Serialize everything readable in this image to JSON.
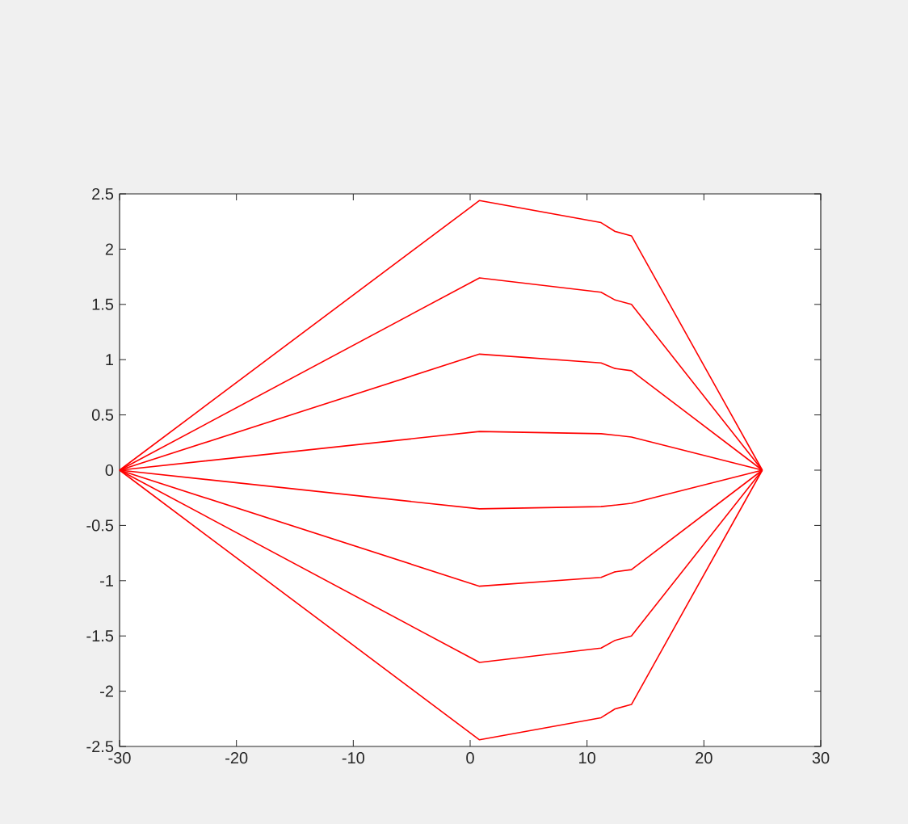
{
  "chart_data": {
    "type": "line",
    "series": [
      {
        "color": "#ff0000",
        "x": [
          -30,
          0.8,
          11.2,
          12.4,
          13.8,
          25
        ],
        "values": [
          0,
          2.44,
          2.24,
          2.16,
          2.12,
          0
        ]
      },
      {
        "color": "#ff0000",
        "x": [
          -30,
          0.8,
          11.2,
          12.4,
          13.8,
          25
        ],
        "values": [
          0,
          1.74,
          1.61,
          1.54,
          1.5,
          0
        ]
      },
      {
        "color": "#ff0000",
        "x": [
          -30,
          0.8,
          11.2,
          12.4,
          13.8,
          25
        ],
        "values": [
          0,
          1.05,
          0.97,
          0.92,
          0.9,
          0
        ]
      },
      {
        "color": "#ff0000",
        "x": [
          -30,
          0.8,
          11.2,
          13.8,
          25
        ],
        "values": [
          0,
          0.35,
          0.33,
          0.3,
          0
        ]
      },
      {
        "color": "#ff0000",
        "x": [
          -30,
          0.8,
          11.2,
          13.8,
          25
        ],
        "values": [
          0,
          -0.35,
          -0.33,
          -0.3,
          0
        ]
      },
      {
        "color": "#ff0000",
        "x": [
          -30,
          0.8,
          11.2,
          12.4,
          13.8,
          25
        ],
        "values": [
          0,
          -1.05,
          -0.97,
          -0.92,
          -0.9,
          0
        ]
      },
      {
        "color": "#ff0000",
        "x": [
          -30,
          0.8,
          11.2,
          12.4,
          13.8,
          25
        ],
        "values": [
          0,
          -1.74,
          -1.61,
          -1.54,
          -1.5,
          0
        ]
      },
      {
        "color": "#ff0000",
        "x": [
          -30,
          0.8,
          11.2,
          12.4,
          13.8,
          25
        ],
        "values": [
          0,
          -2.44,
          -2.24,
          -2.16,
          -2.12,
          0
        ]
      }
    ],
    "xlim": [
      -30,
      30
    ],
    "ylim": [
      -2.5,
      2.5
    ],
    "xticks": [
      -30,
      -20,
      -10,
      0,
      10,
      20,
      30
    ],
    "yticks": [
      -2.5,
      -2,
      -1.5,
      -1,
      -0.5,
      0,
      0.5,
      1,
      1.5,
      2,
      2.5
    ],
    "grid": false,
    "marker": "none",
    "line_style": "solid"
  }
}
